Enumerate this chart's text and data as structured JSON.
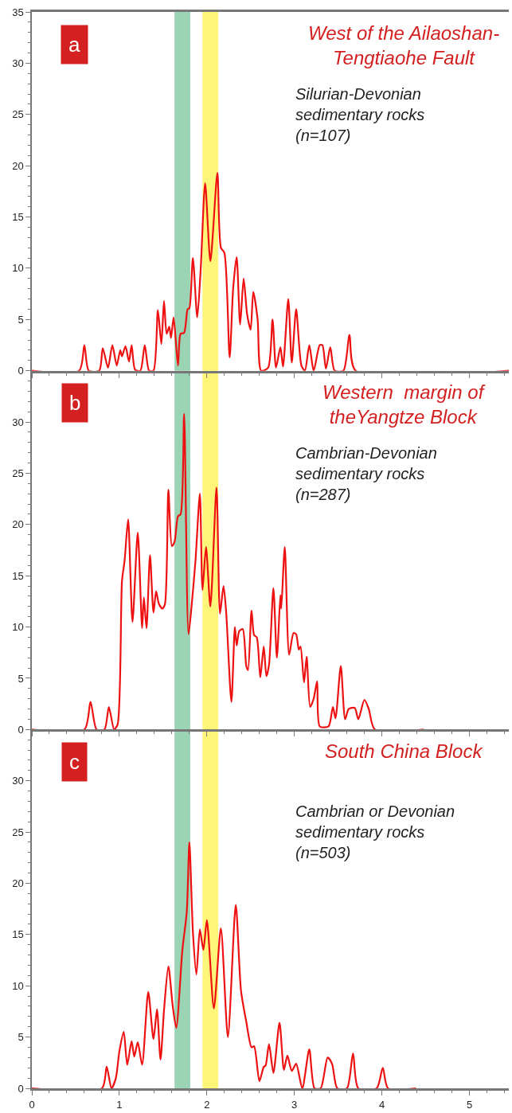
{
  "chart_data": [
    {
      "type": "line",
      "title": "West of the Ailaoshan-\nTengtiaohe Fault",
      "subtitle": "Silurian-Devonian\nsedimentary rocks\n(n=107)",
      "annotations": [
        "a"
      ],
      "x": [
        0,
        0.54,
        0.6,
        0.65,
        0.77,
        0.81,
        0.87,
        0.92,
        0.97,
        1.01,
        1.03,
        1.07,
        1.11,
        1.14,
        1.18,
        1.24,
        1.29,
        1.34,
        1.39,
        1.44,
        1.48,
        1.51,
        1.54,
        1.57,
        1.59,
        1.62,
        1.67,
        1.7,
        1.74,
        1.78,
        1.8,
        1.84,
        1.89,
        1.93,
        1.98,
        2.04,
        2.12,
        2.16,
        2.2,
        2.26,
        2.3,
        2.34,
        2.38,
        2.42,
        2.46,
        2.5,
        2.53,
        2.58,
        2.62,
        2.7,
        2.75,
        2.79,
        2.84,
        2.87,
        2.93,
        2.97,
        3.02,
        3.08,
        3.12,
        3.17,
        3.22,
        3.29,
        3.32,
        3.36,
        3.41,
        3.46,
        3.56,
        3.63,
        3.7,
        5.45
      ],
      "series": [
        {
          "color": "#ee1111",
          "values": [
            0,
            0,
            2.5,
            0,
            0,
            2.2,
            0.3,
            2.5,
            0.5,
            2.0,
            1.4,
            2.4,
            0.9,
            2.5,
            0.1,
            0,
            2.5,
            0,
            0,
            5.9,
            2.6,
            6.8,
            3.6,
            4.3,
            3.2,
            5.2,
            0.5,
            3.6,
            3.7,
            6.0,
            6.1,
            11.0,
            5.2,
            10,
            18.3,
            10.7,
            19.3,
            12,
            11.5,
            1.3,
            8,
            11.1,
            4.5,
            9.0,
            5.5,
            4.0,
            7.7,
            5,
            0,
            0.3,
            5.0,
            0.3,
            2.3,
            0.4,
            7.0,
            0.8,
            6.0,
            0.5,
            0,
            2.5,
            0,
            2.5,
            2.5,
            0.2,
            2.3,
            0,
            0,
            3.5,
            0,
            0
          ]
        }
      ],
      "xlim": [
        0,
        5.45
      ],
      "xticks": [
        0,
        1,
        2,
        3,
        4,
        5
      ],
      "ylim": [
        0,
        35
      ],
      "yticks": [
        0,
        5,
        10,
        15,
        20,
        25,
        30,
        35
      ],
      "tick_labels": "y",
      "bands": [
        {
          "axis": "x",
          "from": 1.63,
          "to": 1.81,
          "color": "#8fcfad"
        },
        {
          "axis": "x",
          "from": 1.95,
          "to": 2.13,
          "color": "#fff56a"
        }
      ]
    },
    {
      "type": "line",
      "title": "Western  margin of\ntheYangtze Block",
      "subtitle": "Cambrian-Devonian\nsedimentary rocks\n(n=287)",
      "annotations": [
        "b"
      ],
      "yticks": [
        0,
        5,
        10,
        15,
        20,
        25,
        30,
        {
          "value": 35,
          "label": null
        }
      ],
      "x": [
        0,
        0.6,
        0.67,
        0.74,
        0.83,
        0.88,
        0.94,
        0.98,
        1.03,
        1.06,
        1.1,
        1.15,
        1.21,
        1.26,
        1.28,
        1.31,
        1.35,
        1.39,
        1.42,
        1.45,
        1.49,
        1.52,
        1.56,
        1.6,
        1.63,
        1.67,
        1.7,
        1.74,
        1.79,
        1.83,
        1.87,
        1.92,
        1.95,
        1.99,
        2.04,
        2.11,
        2.15,
        2.19,
        2.22,
        2.28,
        2.32,
        2.34,
        2.37,
        2.41,
        2.45,
        2.47,
        2.51,
        2.54,
        2.57,
        2.61,
        2.65,
        2.68,
        2.71,
        2.76,
        2.8,
        2.84,
        2.85,
        2.89,
        2.94,
        2.99,
        3.02,
        3.05,
        3.07,
        3.11,
        3.14,
        3.18,
        3.22,
        3.26,
        3.29,
        3.39,
        3.44,
        3.47,
        3.53,
        3.58,
        3.62,
        3.69,
        3.73,
        3.8,
        3.85,
        3.92,
        4.48
      ],
      "series": [
        {
          "color": "#ee1111",
          "values": [
            0,
            0,
            2.7,
            0,
            0,
            2.2,
            0,
            0.5,
            14.5,
            16.5,
            20.5,
            10.5,
            19.2,
            9.9,
            12.9,
            9.9,
            17,
            11.4,
            13.5,
            12.3,
            11.8,
            12.2,
            23.4,
            17.9,
            18.3,
            20.8,
            21,
            30.8,
            9.3,
            12.5,
            16.5,
            23,
            13.6,
            17.8,
            12.0,
            23.6,
            11.3,
            14,
            11.5,
            2.7,
            10.0,
            8.2,
            9.6,
            9.8,
            6.2,
            5.8,
            11.6,
            9.2,
            9.0,
            5.1,
            8.1,
            5.2,
            6.3,
            13.8,
            7.0,
            13.1,
            11.8,
            17.8,
            7.3,
            9.4,
            9.3,
            7.8,
            8.1,
            4.6,
            7.1,
            2.2,
            3.0,
            4.7,
            0.3,
            0.3,
            2.2,
            1.1,
            6.2,
            1.0,
            2.0,
            2.1,
            1.0,
            2.9,
            2.0,
            0,
            0
          ]
        }
      ],
      "xlim": [
        0,
        5.45
      ],
      "xticks": [
        0,
        1,
        2,
        3,
        4,
        5
      ],
      "ylim": [
        0,
        35
      ],
      "tick_labels": "y",
      "bands": [
        {
          "axis": "x",
          "from": 1.63,
          "to": 1.81,
          "color": "#8fcfad"
        },
        {
          "axis": "x",
          "from": 1.95,
          "to": 2.13,
          "color": "#fff56a"
        }
      ]
    },
    {
      "type": "line",
      "title": "South China Block",
      "subtitle": "Cambrian or Devonian\nsedimentary rocks\n(n=503)",
      "annotations": [
        "c"
      ],
      "x": [
        0,
        0.8,
        0.855,
        0.91,
        0.96,
        1.0,
        1.05,
        1.09,
        1.14,
        1.17,
        1.21,
        1.26,
        1.33,
        1.39,
        1.43,
        1.47,
        1.51,
        1.56,
        1.61,
        1.65,
        1.72,
        1.77,
        1.8,
        1.84,
        1.88,
        1.92,
        1.96,
        2.0,
        2.08,
        2.16,
        2.24,
        2.33,
        2.39,
        2.45,
        2.51,
        2.54,
        2.6,
        2.65,
        2.67,
        2.71,
        2.76,
        2.83,
        2.88,
        2.92,
        2.97,
        3.02,
        3.09,
        3.17,
        3.23,
        3.3,
        3.38,
        3.43,
        3.49,
        3.6,
        3.67,
        3.73,
        3.94,
        4.01,
        4.07,
        4.39
      ],
      "series": [
        {
          "color": "#ee1111",
          "values": [
            0,
            0,
            2.1,
            0,
            1.0,
            3.6,
            5.5,
            2.3,
            4.6,
            3.1,
            4.5,
            2.3,
            9.4,
            4.8,
            7.7,
            2.8,
            7.6,
            11.9,
            8.0,
            5.9,
            13.5,
            17.2,
            24,
            15.3,
            11.1,
            15.5,
            13.5,
            16.4,
            7.8,
            15.6,
            5.0,
            17.9,
            9.5,
            6.5,
            4.0,
            4.1,
            0.7,
            2.1,
            2.2,
            4.3,
            1.5,
            6.4,
            1.8,
            3.2,
            1.7,
            2.4,
            0,
            3.8,
            0,
            0,
            3.0,
            2.4,
            0,
            0,
            3.4,
            0,
            0,
            2.0,
            0,
            0
          ]
        }
      ],
      "xlim": [
        0,
        5.45
      ],
      "xticks": [
        0,
        1,
        2,
        3,
        4,
        5
      ],
      "ylim": [
        0,
        35
      ],
      "yticks": [
        0,
        5,
        10,
        15,
        20,
        25,
        30,
        {
          "value": 35,
          "label": null
        }
      ],
      "bands": [
        {
          "axis": "x",
          "from": 1.63,
          "to": 1.81,
          "color": "#8fcfad"
        },
        {
          "axis": "x",
          "from": 1.95,
          "to": 2.13,
          "color": "#fff56a"
        }
      ]
    }
  ]
}
